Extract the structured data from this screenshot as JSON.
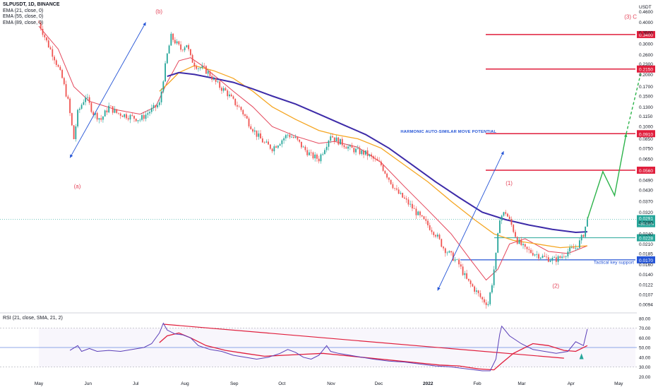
{
  "header": {
    "symbol_line": "SLPUSDT, 1D, BINANCE",
    "indicators": [
      "EMA (21, close, 0)",
      "EMA (55, close, 0)",
      "EMA (89, close, 0)"
    ],
    "currency": "USDT",
    "rsi_label": "RSI (21, close, SMA, 21, 2)"
  },
  "chart_data": {
    "type": "candlestick",
    "symbol": "SLPUSDT",
    "interval": "1D",
    "exchange": "BINANCE",
    "x_axis_labels": [
      "May",
      "Jun",
      "Jul",
      "Aug",
      "Sep",
      "Oct",
      "Nov",
      "Dec",
      "2022",
      "Feb",
      "Mar",
      "Apr",
      "May"
    ],
    "y_axis": {
      "scale": "log",
      "range": [
        0.0088,
        0.49
      ],
      "tick_labels": [
        "0.4600",
        "0.4000",
        "0.3500",
        "0.3000",
        "0.2600",
        "0.2300",
        "0.2000",
        "0.1700",
        "0.1500",
        "0.1300",
        "0.1150",
        "0.1000",
        "0.0850",
        "0.0750",
        "0.0650",
        "0.0490",
        "0.0430",
        "0.0370",
        "0.0320",
        "0.0280",
        "0.0240",
        "0.0210",
        "0.0185",
        "0.0160",
        "0.0140",
        "0.0122",
        "0.0107",
        "0.0094"
      ]
    },
    "price_path": [
      [
        0,
        0.4
      ],
      [
        4,
        0.31
      ],
      [
        8,
        0.25
      ],
      [
        12,
        0.19
      ],
      [
        15,
        0.14
      ],
      [
        18,
        0.085
      ],
      [
        20,
        0.12
      ],
      [
        24,
        0.15
      ],
      [
        28,
        0.12
      ],
      [
        32,
        0.11
      ],
      [
        36,
        0.13
      ],
      [
        40,
        0.12
      ],
      [
        46,
        0.115
      ],
      [
        52,
        0.11
      ],
      [
        58,
        0.125
      ],
      [
        62,
        0.135
      ],
      [
        64,
        0.19
      ],
      [
        66,
        0.26
      ],
      [
        68,
        0.33
      ],
      [
        70,
        0.31
      ],
      [
        73,
        0.28
      ],
      [
        76,
        0.3
      ],
      [
        78,
        0.25
      ],
      [
        80,
        0.23
      ],
      [
        82,
        0.22
      ],
      [
        85,
        0.215
      ],
      [
        88,
        0.2
      ],
      [
        90,
        0.185
      ],
      [
        93,
        0.17
      ],
      [
        96,
        0.16
      ],
      [
        100,
        0.14
      ],
      [
        104,
        0.125
      ],
      [
        108,
        0.105
      ],
      [
        112,
        0.09
      ],
      [
        116,
        0.08
      ],
      [
        120,
        0.075
      ],
      [
        124,
        0.082
      ],
      [
        128,
        0.09
      ],
      [
        132,
        0.085
      ],
      [
        136,
        0.075
      ],
      [
        140,
        0.068
      ],
      [
        144,
        0.065
      ],
      [
        148,
        0.08
      ],
      [
        150,
        0.09
      ],
      [
        152,
        0.085
      ],
      [
        156,
        0.08
      ],
      [
        160,
        0.075
      ],
      [
        164,
        0.072
      ],
      [
        168,
        0.07
      ],
      [
        172,
        0.065
      ],
      [
        176,
        0.06
      ],
      [
        180,
        0.05
      ],
      [
        184,
        0.042
      ],
      [
        188,
        0.038
      ],
      [
        192,
        0.034
      ],
      [
        196,
        0.03
      ],
      [
        200,
        0.027
      ],
      [
        204,
        0.024
      ],
      [
        208,
        0.02
      ],
      [
        212,
        0.018
      ],
      [
        216,
        0.016
      ],
      [
        220,
        0.013
      ],
      [
        224,
        0.0115
      ],
      [
        228,
        0.01
      ],
      [
        231,
        0.0095
      ],
      [
        233,
        0.0125
      ],
      [
        235,
        0.018
      ],
      [
        237,
        0.03
      ],
      [
        240,
        0.032
      ],
      [
        243,
        0.027
      ],
      [
        246,
        0.022
      ],
      [
        250,
        0.0195
      ],
      [
        255,
        0.0185
      ],
      [
        260,
        0.0175
      ],
      [
        265,
        0.017
      ],
      [
        268,
        0.0175
      ],
      [
        272,
        0.019
      ],
      [
        276,
        0.02
      ],
      [
        278,
        0.0215
      ],
      [
        280,
        0.024
      ],
      [
        282,
        0.0291
      ]
    ],
    "last_price": "0.0291",
    "last_change": "+86.61%",
    "series": [
      {
        "name": "EMA (21, close, 0)",
        "color": "#e4455a"
      },
      {
        "name": "EMA (55, close, 0)",
        "color": "#f5a623"
      },
      {
        "name": "EMA (89, close, 0)",
        "color": "#3d2ba8"
      }
    ],
    "ema21": [
      [
        0,
        0.38
      ],
      [
        10,
        0.28
      ],
      [
        18,
        0.17
      ],
      [
        26,
        0.14
      ],
      [
        40,
        0.125
      ],
      [
        52,
        0.118
      ],
      [
        60,
        0.13
      ],
      [
        66,
        0.18
      ],
      [
        72,
        0.24
      ],
      [
        78,
        0.25
      ],
      [
        84,
        0.225
      ],
      [
        92,
        0.19
      ],
      [
        100,
        0.16
      ],
      [
        110,
        0.13
      ],
      [
        120,
        0.1
      ],
      [
        132,
        0.088
      ],
      [
        144,
        0.08
      ],
      [
        152,
        0.082
      ],
      [
        164,
        0.076
      ],
      [
        176,
        0.062
      ],
      [
        188,
        0.045
      ],
      [
        200,
        0.033
      ],
      [
        212,
        0.024
      ],
      [
        222,
        0.017
      ],
      [
        230,
        0.013
      ],
      [
        236,
        0.015
      ],
      [
        242,
        0.021
      ],
      [
        250,
        0.0225
      ],
      [
        262,
        0.019
      ],
      [
        272,
        0.0185
      ],
      [
        282,
        0.0205
      ]
    ],
    "ema55": [
      [
        62,
        0.16
      ],
      [
        66,
        0.175
      ],
      [
        72,
        0.205
      ],
      [
        80,
        0.225
      ],
      [
        90,
        0.21
      ],
      [
        100,
        0.19
      ],
      [
        110,
        0.16
      ],
      [
        120,
        0.13
      ],
      [
        132,
        0.11
      ],
      [
        144,
        0.095
      ],
      [
        152,
        0.09
      ],
      [
        164,
        0.085
      ],
      [
        176,
        0.075
      ],
      [
        188,
        0.06
      ],
      [
        200,
        0.048
      ],
      [
        212,
        0.037
      ],
      [
        224,
        0.029
      ],
      [
        234,
        0.024
      ],
      [
        244,
        0.022
      ],
      [
        256,
        0.021
      ],
      [
        268,
        0.02
      ],
      [
        282,
        0.0205
      ]
    ],
    "ema89": [
      [
        66,
        0.195
      ],
      [
        72,
        0.205
      ],
      [
        80,
        0.2
      ],
      [
        90,
        0.19
      ],
      [
        100,
        0.18
      ],
      [
        110,
        0.165
      ],
      [
        120,
        0.15
      ],
      [
        132,
        0.135
      ],
      [
        144,
        0.118
      ],
      [
        156,
        0.103
      ],
      [
        168,
        0.09
      ],
      [
        180,
        0.075
      ],
      [
        192,
        0.06
      ],
      [
        204,
        0.048
      ],
      [
        216,
        0.039
      ],
      [
        228,
        0.032
      ],
      [
        240,
        0.029
      ],
      [
        252,
        0.027
      ],
      [
        264,
        0.0255
      ],
      [
        276,
        0.0245
      ],
      [
        282,
        0.0247
      ]
    ],
    "horizontal_levels": [
      {
        "label": "0.3400",
        "value": 0.34
      },
      {
        "label": "0.2150",
        "value": 0.215
      },
      {
        "label": "0.0910",
        "value": 0.091
      },
      {
        "label": "0.0560",
        "value": 0.056
      }
    ],
    "support": {
      "label": "0.0170",
      "value": 0.017,
      "text": "Tactical key support"
    },
    "green_level": {
      "label": "0.0228",
      "value": 0.0228
    },
    "projection_path": [
      [
        282,
        0.0291
      ],
      [
        290,
        0.055
      ],
      [
        296,
        0.04
      ],
      [
        302,
        0.091
      ],
      [
        310,
        0.215
      ]
    ],
    "annotations": [
      {
        "text": "(b)",
        "x": 60,
        "y": 0.45,
        "color": "#e4455a"
      },
      {
        "text": "(a)",
        "x": 18,
        "y": 0.044,
        "color": "#e4455a"
      },
      {
        "text": "(1)",
        "x": 240,
        "y": 0.046,
        "color": "#e4455a"
      },
      {
        "text": "(2)",
        "x": 264,
        "y": 0.0117,
        "color": "#e4455a"
      },
      {
        "text": "(3) C",
        "x": 301,
        "y": 0.42,
        "color": "#e4455a"
      },
      {
        "text": "HARMONIC AUTO-SIMILAR MOVE POTENTIAL",
        "x": 186,
        "y": 0.092,
        "color": "#2454d6"
      }
    ],
    "trend_arrows": [
      {
        "from": [
          16,
          0.066
        ],
        "to": [
          55,
          0.4
        ]
      },
      {
        "from": [
          205,
          0.0113
        ],
        "to": [
          239,
          0.072
        ]
      }
    ],
    "rsi": {
      "y_axis_labels": [
        "80.00",
        "70.00",
        "60.00",
        "50.00",
        "40.00",
        "30.00",
        "20.00"
      ],
      "range": [
        18,
        82
      ],
      "bands": [
        70,
        50,
        30
      ],
      "rsi_path": [
        [
          16,
          47
        ],
        [
          20,
          52
        ],
        [
          22,
          46
        ],
        [
          26,
          49
        ],
        [
          30,
          46
        ],
        [
          36,
          47
        ],
        [
          42,
          46
        ],
        [
          48,
          48
        ],
        [
          54,
          50
        ],
        [
          58,
          54
        ],
        [
          62,
          65
        ],
        [
          64,
          75
        ],
        [
          66,
          68
        ],
        [
          70,
          64
        ],
        [
          74,
          63
        ],
        [
          78,
          60
        ],
        [
          82,
          52
        ],
        [
          88,
          48
        ],
        [
          94,
          46
        ],
        [
          100,
          42
        ],
        [
          106,
          40
        ],
        [
          112,
          38
        ],
        [
          118,
          40
        ],
        [
          124,
          44
        ],
        [
          128,
          48
        ],
        [
          132,
          45
        ],
        [
          136,
          40
        ],
        [
          140,
          38
        ],
        [
          144,
          42
        ],
        [
          148,
          52
        ],
        [
          150,
          46
        ],
        [
          154,
          44
        ],
        [
          160,
          42
        ],
        [
          166,
          40
        ],
        [
          172,
          38
        ],
        [
          180,
          36
        ],
        [
          188,
          35
        ],
        [
          196,
          33
        ],
        [
          204,
          31
        ],
        [
          212,
          30
        ],
        [
          220,
          28
        ],
        [
          228,
          26
        ],
        [
          232,
          26
        ],
        [
          235,
          38
        ],
        [
          237,
          64
        ],
        [
          238,
          72
        ],
        [
          242,
          62
        ],
        [
          248,
          54
        ],
        [
          254,
          48
        ],
        [
          260,
          46
        ],
        [
          266,
          44
        ],
        [
          272,
          46
        ],
        [
          276,
          56
        ],
        [
          280,
          52
        ],
        [
          282,
          69
        ]
      ],
      "rsi_ma_path": [
        [
          62,
          55
        ],
        [
          66,
          62
        ],
        [
          72,
          65
        ],
        [
          78,
          60
        ],
        [
          86,
          52
        ],
        [
          96,
          47
        ],
        [
          106,
          44
        ],
        [
          116,
          41
        ],
        [
          126,
          42
        ],
        [
          136,
          43
        ],
        [
          146,
          44
        ],
        [
          156,
          42
        ],
        [
          166,
          40
        ],
        [
          176,
          38
        ],
        [
          186,
          36
        ],
        [
          196,
          34
        ],
        [
          206,
          32
        ],
        [
          216,
          31
        ],
        [
          226,
          28
        ],
        [
          234,
          27
        ],
        [
          238,
          34
        ],
        [
          244,
          44
        ],
        [
          254,
          54
        ],
        [
          262,
          52
        ],
        [
          270,
          47
        ],
        [
          276,
          46
        ],
        [
          282,
          52
        ]
      ],
      "trendline": [
        [
          64,
          74
        ],
        [
          270,
          39
        ]
      ]
    }
  }
}
